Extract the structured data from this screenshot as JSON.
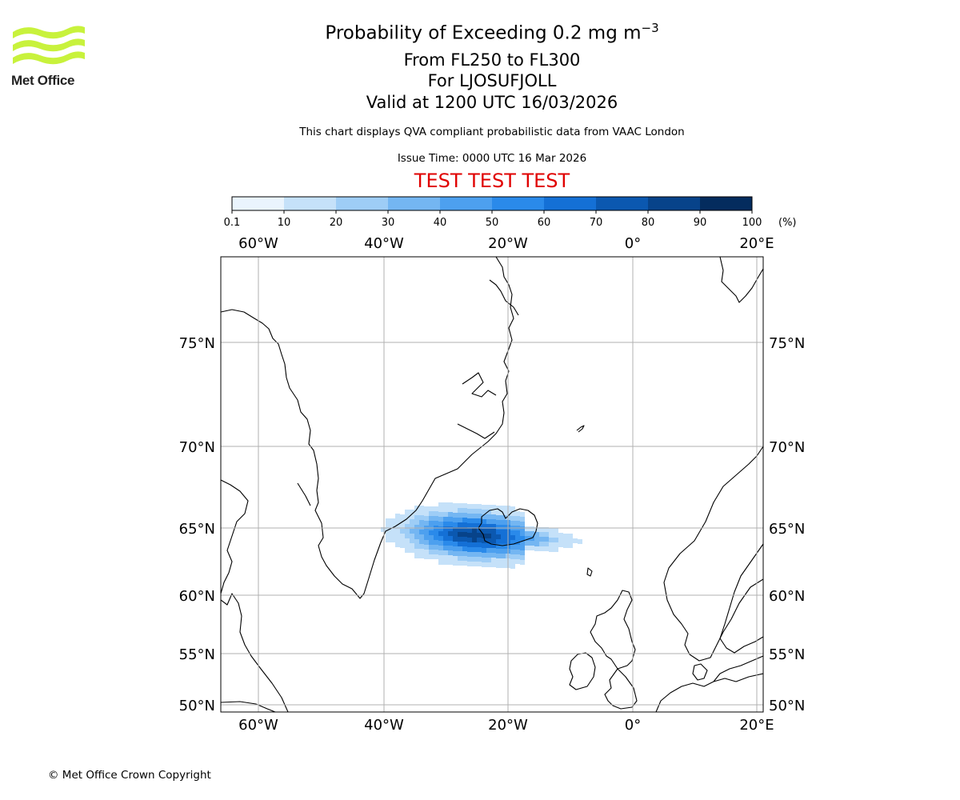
{
  "header": {
    "title_prefix": "Probability of Exceeding 0.2 mg m",
    "title_exponent": "−3",
    "level_range": "From FL250 to FL300",
    "volcano": "For LJOSUFJOLL",
    "valid_time": "Valid at 1200 UTC 16/03/2026",
    "subtitle": "This chart displays QVA compliant probabilistic data from VAAC London",
    "issue_time": "Issue Time: 0000 UTC 16 Mar 2026",
    "test_label": "TEST TEST TEST",
    "test_label_color": "#e00000"
  },
  "logo": {
    "text": "Met Office",
    "accent_color": "#c8f23c",
    "icon": "met-office-wave-logo"
  },
  "colorbar": {
    "ticks": [
      "0.1",
      "10",
      "20",
      "30",
      "40",
      "50",
      "60",
      "70",
      "80",
      "90",
      "100"
    ],
    "unit": "(%)",
    "colors": [
      "#eaf4fd",
      "#c5e1f9",
      "#9ecdf6",
      "#74b6f2",
      "#4da0ef",
      "#2a8aea",
      "#1470d6",
      "#0b58b0",
      "#07438a",
      "#042c5e"
    ]
  },
  "map": {
    "projection_note": "",
    "lon_labels": [
      "60°W",
      "40°W",
      "20°W",
      "0°",
      "20°E"
    ],
    "lat_labels": [
      "75°N",
      "70°N",
      "65°N",
      "60°N",
      "55°N",
      "50°N"
    ],
    "grid_color": "#b0b0b0",
    "regions": [
      "Greenland",
      "Iceland",
      "Svalbard",
      "Jan Mayen",
      "Faroe Islands",
      "British Isles",
      "Norway",
      "Sweden",
      "Denmark"
    ]
  },
  "plume": {
    "description": "",
    "max_probability_band": "80-90",
    "colors_used": [
      "#c5e1f9",
      "#9ecdf6",
      "#74b6f2",
      "#4da0ef",
      "#2a8aea",
      "#1470d6",
      "#0b58b0",
      "#07438a"
    ]
  },
  "footer": {
    "copyright": "© Met Office Crown Copyright"
  }
}
